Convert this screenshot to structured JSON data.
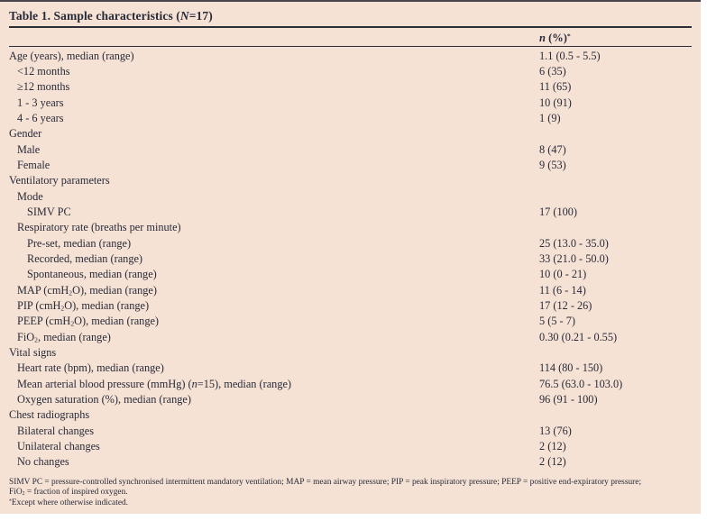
{
  "colors": {
    "table_background": "#f6e2d5",
    "text_color": "#272a38",
    "rule_color": "#2c2e38",
    "top_rule": "#4a444c"
  },
  "table": {
    "title": "Table 1. Sample characteristics (`N`=17)",
    "column_header": "`n` (%)^*^",
    "rows": [
      {
        "label": "Age (years), median (range)",
        "indent": 0,
        "value": "1.1 (0.5 - 5.5)"
      },
      {
        "label": "<12 months",
        "indent": 1,
        "value": "6 (35)"
      },
      {
        "label": "≥12 months",
        "indent": 1,
        "value": "11 (65)"
      },
      {
        "label": "1 - 3 years",
        "indent": 1,
        "value": "10 (91)"
      },
      {
        "label": "4 - 6 years",
        "indent": 1,
        "value": "1 (9)"
      },
      {
        "label": "Gender",
        "indent": 0,
        "value": ""
      },
      {
        "label": "Male",
        "indent": 1,
        "value": "8 (47)"
      },
      {
        "label": "Female",
        "indent": 1,
        "value": "9 (53)"
      },
      {
        "label": "Ventilatory parameters",
        "indent": 0,
        "value": ""
      },
      {
        "label": "Mode",
        "indent": 1,
        "value": ""
      },
      {
        "label": "SIMV PC",
        "indent": 2,
        "value": "17 (100)"
      },
      {
        "label": "Respiratory rate (breaths per minute)",
        "indent": 1,
        "value": ""
      },
      {
        "label": "Pre-set, median (range)",
        "indent": 2,
        "value": "25 (13.0 - 35.0)"
      },
      {
        "label": "Recorded, median (range)",
        "indent": 2,
        "value": "33 (21.0 - 50.0)"
      },
      {
        "label": "Spontaneous, median (range)",
        "indent": 2,
        "value": "10 (0 - 21)"
      },
      {
        "label": "MAP (cmH~2~O), median (range)",
        "indent": 1,
        "value": "11 (6 - 14)"
      },
      {
        "label": "PIP (cmH~2~O), median (range)",
        "indent": 1,
        "value": "17 (12 - 26)"
      },
      {
        "label": "PEEP (cmH~2~O), median (range)",
        "indent": 1,
        "value": "5 (5 - 7)"
      },
      {
        "label": "FiO~2~, median (range)",
        "indent": 1,
        "value": "0.30 (0.21 - 0.55)"
      },
      {
        "label": "Vital signs",
        "indent": 0,
        "value": ""
      },
      {
        "label": "Heart rate (bpm), median (range)",
        "indent": 1,
        "value": "114 (80 - 150)"
      },
      {
        "label": "Mean arterial blood pressure (mmHg) (`n`=15), median (range)",
        "indent": 1,
        "value": "76.5 (63.0 - 103.0)"
      },
      {
        "label": "Oxygen saturation (%), median (range)",
        "indent": 1,
        "value": "96 (91 - 100)"
      },
      {
        "label": "Chest radiographs",
        "indent": 0,
        "value": ""
      },
      {
        "label": "Bilateral changes",
        "indent": 1,
        "value": "13 (76)"
      },
      {
        "label": "Unilateral changes",
        "indent": 1,
        "value": "2 (12)"
      },
      {
        "label": "No changes",
        "indent": 1,
        "value": "2 (12)"
      }
    ],
    "footnotes": [
      "SIMV PC = pressure-controlled synchronised intermittent mandatory ventilation; MAP = mean airway pressure; PIP = peak inspiratory pressure; PEEP = positive end-expiratory pressure;",
      "FiO~2~ = fraction of inspired oxygen.",
      "^*^Except where otherwise indicated."
    ]
  }
}
